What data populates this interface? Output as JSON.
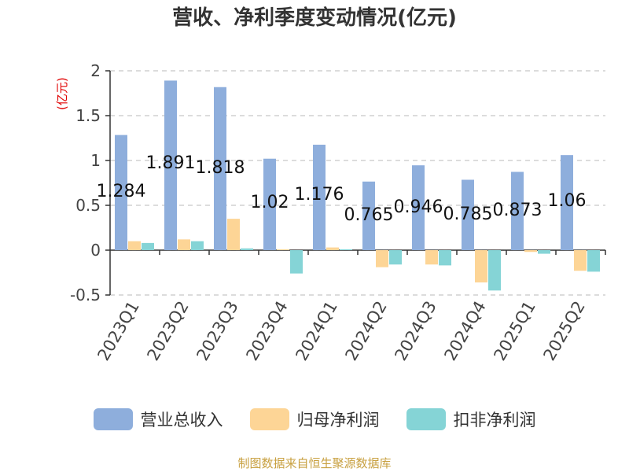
{
  "chart_data": {
    "type": "bar",
    "title": "营收、净利季度变动情况(亿元)",
    "unit": "(亿元)",
    "categories": [
      "2023Q1",
      "2023Q2",
      "2023Q3",
      "2023Q4",
      "2024Q1",
      "2024Q2",
      "2024Q3",
      "2024Q4",
      "2025Q1",
      "2025Q2"
    ],
    "series": [
      {
        "name": "营业总收入",
        "color": "#8eaedc",
        "values": [
          1.284,
          1.891,
          1.818,
          1.02,
          1.176,
          0.765,
          0.946,
          0.785,
          0.873,
          1.06
        ]
      },
      {
        "name": "归母净利润",
        "color": "#fdd596",
        "values": [
          0.1,
          0.12,
          0.35,
          0.01,
          0.03,
          -0.19,
          -0.16,
          -0.36,
          -0.02,
          -0.23
        ]
      },
      {
        "name": "扣非净利润",
        "color": "#85d4d6",
        "values": [
          0.08,
          0.1,
          0.02,
          -0.26,
          0.01,
          -0.16,
          -0.17,
          -0.45,
          -0.04,
          -0.24
        ]
      }
    ],
    "data_labels": [
      "1.284",
      "1.891",
      "1.818",
      "1.02",
      "1.176",
      "0.765",
      "0.946",
      "0.785",
      "0.873",
      "1.06"
    ],
    "yticks": [
      "2",
      "1.5",
      "1",
      "0.5",
      "0",
      "-0.5"
    ],
    "ylim": [
      -0.5,
      2
    ],
    "grid": true,
    "legend_position": "bottom"
  },
  "source": "制图数据来自恒生聚源数据库"
}
